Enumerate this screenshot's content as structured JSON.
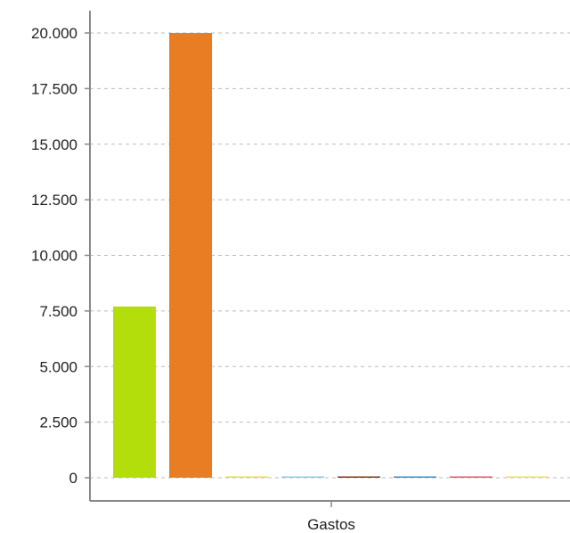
{
  "chart_data": {
    "type": "bar",
    "categories": [
      "Gastos"
    ],
    "series": [
      {
        "values": [
          7700
        ],
        "color": "#b3de0c"
      },
      {
        "values": [
          20000
        ],
        "color": "#e87d24"
      },
      {
        "values": [
          60
        ],
        "color": "#e8d84a"
      },
      {
        "values": [
          60
        ],
        "color": "#8ec8e8"
      },
      {
        "values": [
          60
        ],
        "color": "#7a3b10"
      },
      {
        "values": [
          60
        ],
        "color": "#3a8fc7"
      },
      {
        "values": [
          60
        ],
        "color": "#e05a6a"
      },
      {
        "values": [
          60
        ],
        "color": "#e8e060"
      }
    ],
    "yticks": [
      0,
      2500,
      5000,
      7500,
      10000,
      12500,
      15000,
      17500,
      20000
    ],
    "ytick_labels": [
      "0",
      "2.500",
      "5.000",
      "7.500",
      "10.000",
      "12.500",
      "15.000",
      "17.500",
      "20.000"
    ],
    "ylim": [
      -1000,
      21000
    ],
    "title": "",
    "xlabel": "",
    "ylabel": "",
    "grid": true,
    "legend": "none",
    "colors": {
      "axis": "#888888",
      "grid": "#bbbbbb",
      "text": "#222222"
    }
  }
}
